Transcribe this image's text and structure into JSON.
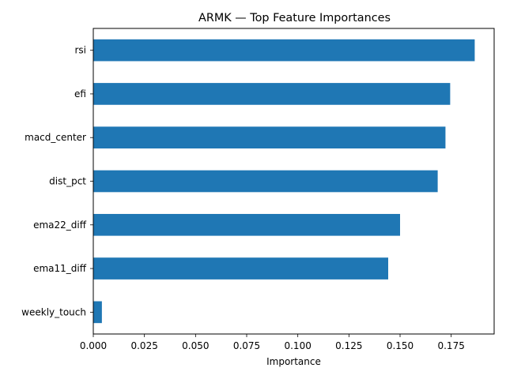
{
  "chart_data": {
    "type": "bar",
    "orientation": "horizontal",
    "title": "ARMK — Top Feature Importances",
    "xlabel": "Importance",
    "ylabel": "",
    "categories": [
      "rsi",
      "efi",
      "macd_center",
      "dist_pct",
      "ema22_diff",
      "ema11_diff",
      "weekly_touch"
    ],
    "values": [
      0.1865,
      0.1745,
      0.1722,
      0.1684,
      0.15,
      0.1442,
      0.0042
    ],
    "xlim": [
      0.0,
      0.196
    ],
    "xticks": [
      "0.000",
      "0.025",
      "0.050",
      "0.075",
      "0.100",
      "0.125",
      "0.150",
      "0.175"
    ],
    "xtick_values": [
      0,
      0.025,
      0.05,
      0.075,
      0.1,
      0.125,
      0.15,
      0.175
    ],
    "bar_color": "#1f77b4",
    "grid": false,
    "legend": "none"
  }
}
